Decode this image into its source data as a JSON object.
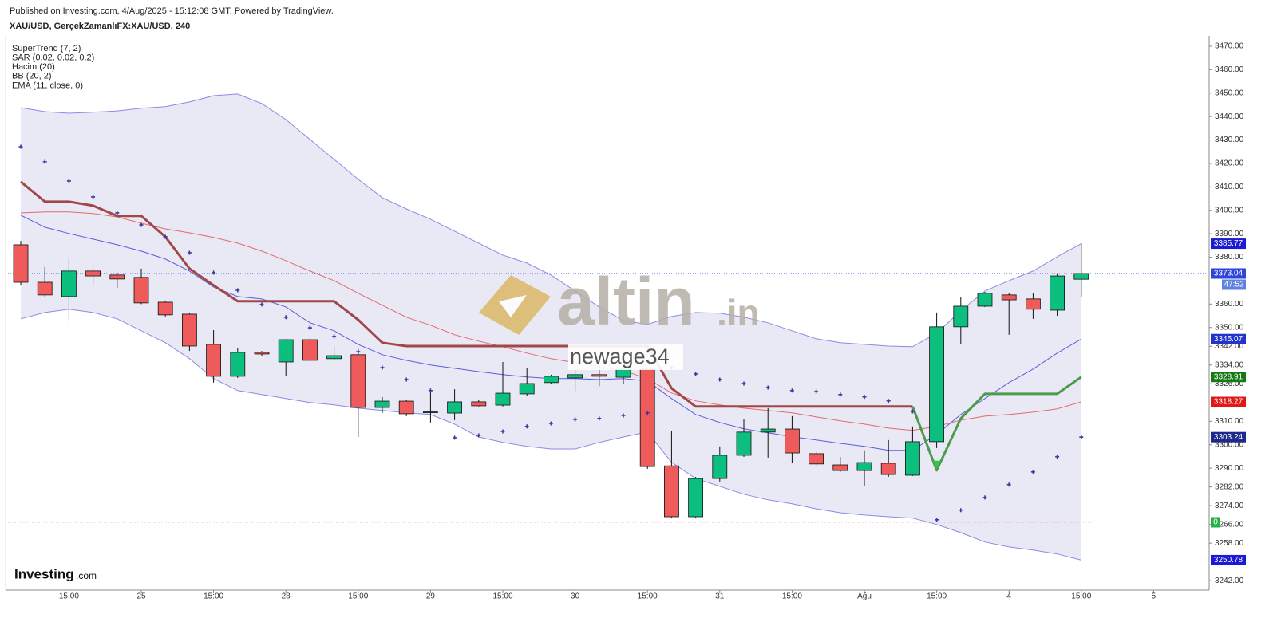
{
  "header": {
    "published": "Published on Investing.com, 4/Aug/2025 - 15:12:08 GMT, Powered by TradingView.",
    "symbol": "XAU/USD, GerçekZamanlıFX:XAU/USD, 240"
  },
  "watermark": {
    "brand": "altin",
    "suffix": ".in",
    "user": "newage34"
  },
  "logo": {
    "name": "Investing",
    "suffix": ".com"
  },
  "countdown": "47:52",
  "volume_last": 0,
  "chart_data": {
    "type": "candlestick",
    "categories": [
      null,
      null,
      "15:00",
      null,
      null,
      "25",
      null,
      null,
      "15:00",
      null,
      null,
      "28",
      null,
      null,
      "15:00",
      null,
      null,
      "29",
      null,
      null,
      "15:00",
      null,
      null,
      "30",
      null,
      null,
      "15:00",
      null,
      null,
      "31",
      null,
      null,
      "15:00",
      null,
      null,
      "Ağu",
      null,
      null,
      "15:00",
      null,
      null,
      "4",
      null,
      null,
      "15:00",
      null,
      null,
      "5"
    ],
    "open": [
      3385.3,
      3369.3,
      3363.2,
      3374.1,
      3372.4,
      3371.4,
      3360.8,
      3355.7,
      3342.8,
      3329.2,
      3339.4,
      3335.3,
      3344.8,
      3336.7,
      3338.4,
      3315.9,
      3318.6,
      3313.9,
      3313.5,
      3318.3,
      3316.9,
      3321.7,
      3326.5,
      3328.5,
      3329.9,
      3328.8,
      3332.2,
      3291.0,
      3269.3,
      3285.6,
      3295.5,
      3305.4,
      3306.7,
      3296.2,
      3291.4,
      3289.0,
      3292.1,
      3287.0,
      3301.3,
      3350.3,
      3359.1,
      3363.9,
      3362.2,
      3357.4,
      3370.6,
      null,
      null,
      null
    ],
    "high": [
      3387.0,
      3375.8,
      3379.2,
      3375.4,
      3373.4,
      3375.1,
      3361.5,
      3356.4,
      3348.9,
      3341.4,
      3340.0,
      3345.0,
      3345.5,
      3341.8,
      3340.8,
      3320.3,
      3319.3,
      3323.7,
      3323.7,
      3319.0,
      3335.3,
      3332.6,
      3329.9,
      3334.0,
      3334.6,
      3333.3,
      3333.0,
      3305.7,
      3286.3,
      3299.3,
      3310.8,
      3315.6,
      3312.2,
      3297.2,
      3294.8,
      3297.6,
      3302.0,
      3307.8,
      3356.4,
      3362.9,
      3365.2,
      3364.6,
      3364.6,
      3373.1,
      3386.0,
      null,
      null,
      null
    ],
    "low": [
      3368.0,
      3363.2,
      3353.0,
      3368.0,
      3366.9,
      3360.0,
      3354.7,
      3340.0,
      3326.5,
      3328.5,
      3338.0,
      3329.5,
      3335.6,
      3336.0,
      3303.3,
      3313.5,
      3312.2,
      3309.5,
      3310.5,
      3316.3,
      3316.3,
      3320.7,
      3325.8,
      3323.0,
      3325.0,
      3326.0,
      3289.7,
      3268.6,
      3268.6,
      3284.3,
      3294.8,
      3294.5,
      3292.1,
      3291.1,
      3288.4,
      3282.2,
      3286.3,
      3286.7,
      3298.6,
      3342.8,
      3358.8,
      3346.9,
      3353.7,
      3355.0,
      3363.2,
      null,
      null,
      null
    ],
    "close": [
      3369.3,
      3363.9,
      3374.1,
      3372.0,
      3370.7,
      3360.5,
      3355.4,
      3342.1,
      3329.2,
      3339.4,
      3338.7,
      3344.8,
      3336.0,
      3338.0,
      3315.9,
      3318.6,
      3313.2,
      3314.0,
      3318.3,
      3316.6,
      3322.0,
      3326.1,
      3329.2,
      3329.9,
      3329.2,
      3332.2,
      3290.7,
      3269.3,
      3285.6,
      3295.5,
      3305.4,
      3306.7,
      3296.5,
      3291.8,
      3289.0,
      3292.4,
      3287.3,
      3301.3,
      3350.3,
      3359.1,
      3364.6,
      3361.8,
      3357.8,
      3372.0,
      3373.04,
      null,
      null,
      null
    ],
    "up_color": "#0dbf7e",
    "down_color": "#ef5b5b",
    "indicators": [
      {
        "name": "SuperTrend (7, 2)",
        "lines": [
          {
            "color": "#a04848",
            "values": [
              3412.2,
              3403.7,
              3403.7,
              3402.0,
              3397.6,
              3397.6,
              3388.7,
              3375.1,
              3368.0,
              3361.2,
              3361.2,
              3361.2,
              3361.2,
              3361.2,
              3353.3,
              3343.5,
              3342.1,
              3342.1,
              3342.1,
              3342.1,
              3342.1,
              3342.1,
              3342.1,
              3342.1,
              3342.1,
              3342.1,
              3342.1,
              3324.1,
              3316.3,
              3316.3,
              3316.3,
              3316.3,
              3316.3,
              3316.3,
              3316.3,
              3316.3,
              3316.3,
              3316.3,
              null,
              null,
              null,
              null,
              null,
              null,
              null,
              null,
              null,
              null
            ]
          },
          {
            "color": "#4c9a4c",
            "values": [
              null,
              null,
              null,
              null,
              null,
              null,
              null,
              null,
              null,
              null,
              null,
              null,
              null,
              null,
              null,
              null,
              null,
              null,
              null,
              null,
              null,
              null,
              null,
              null,
              null,
              null,
              null,
              null,
              null,
              null,
              null,
              null,
              null,
              null,
              null,
              null,
              null,
              3316.3,
              3289.1,
              3311.2,
              3321.7,
              3321.7,
              3321.7,
              3321.7,
              3328.91,
              null,
              null,
              null
            ]
          }
        ]
      },
      {
        "name": "SAR (0.02, 0.02, 0.2)",
        "color": "#3a3aa0",
        "values": [
          3427.1,
          3420.7,
          3412.5,
          3405.7,
          3398.9,
          3393.8,
          3388.7,
          3381.9,
          3373.4,
          3365.9,
          3359.8,
          3354.4,
          3349.9,
          3346.2,
          3339.7,
          3332.9,
          3327.8,
          3323.1,
          3303.0,
          3304.0,
          3305.7,
          3307.8,
          3309.1,
          3310.8,
          3311.2,
          3312.5,
          3313.6,
          3332.9,
          3330.2,
          3327.8,
          3326.1,
          3324.4,
          3323.1,
          3322.7,
          3321.4,
          3320.4,
          3318.7,
          3314.2,
          3268.0,
          3272.1,
          3277.5,
          3283.0,
          3288.4,
          3294.9,
          3303.24,
          null,
          null,
          null
        ]
      },
      {
        "name": "Hacim (20)"
      },
      {
        "name": "BB (20, 2)",
        "color": "#8a8ae6",
        "middle_color": "#5b5be0",
        "fill": "#e9e9f5",
        "upper": [
          3443.8,
          3442.1,
          3441.4,
          3441.8,
          3442.4,
          3443.5,
          3444.2,
          3446.2,
          3448.9,
          3449.6,
          3445.5,
          3438.7,
          3430.2,
          3421.7,
          3413.2,
          3405.4,
          3400.6,
          3396.2,
          3391.1,
          3386.0,
          3380.9,
          3377.5,
          3372.4,
          3365.6,
          3358.8,
          3353.0,
          3351.3,
          3354.7,
          3356.4,
          3356.1,
          3354.4,
          3352.0,
          3348.6,
          3345.2,
          3343.5,
          3342.8,
          3342.1,
          3341.8,
          3347.6,
          3357.1,
          3365.6,
          3370.0,
          3374.1,
          3380.2,
          3385.77,
          null,
          null,
          null
        ],
        "middle": [
          3397.9,
          3392.8,
          3390.1,
          3387.7,
          3385.3,
          3382.6,
          3379.2,
          3374.1,
          3367.3,
          3363.2,
          3362.2,
          3358.8,
          3352.0,
          3348.6,
          3342.8,
          3338.4,
          3336.0,
          3334.0,
          3332.6,
          3331.2,
          3329.9,
          3328.9,
          3328.2,
          3328.2,
          3327.8,
          3328.2,
          3327.2,
          3319.7,
          3312.9,
          3309.5,
          3306.8,
          3305.1,
          3303.4,
          3302.0,
          3300.6,
          3299.3,
          3297.6,
          3297.6,
          3304.4,
          3312.9,
          3319.7,
          3326.5,
          3332.3,
          3339.1,
          3345.07,
          null,
          null,
          null
        ],
        "lower": [
          3353.7,
          3356.4,
          3357.8,
          3356.4,
          3353.7,
          3348.6,
          3343.5,
          3336.7,
          3328.2,
          3323.1,
          3321.4,
          3319.7,
          3318.0,
          3317.0,
          3315.6,
          3314.6,
          3313.6,
          3312.9,
          3308.8,
          3303.3,
          3301.0,
          3299.3,
          3298.2,
          3298.2,
          3301.0,
          3303.3,
          3305.4,
          3292.5,
          3285.6,
          3282.3,
          3278.9,
          3276.5,
          3274.8,
          3272.7,
          3271.0,
          3270.0,
          3269.3,
          3268.7,
          3266.0,
          3262.5,
          3258.5,
          3256.4,
          3255.1,
          3253.4,
          3250.78,
          null,
          null,
          null
        ]
      },
      {
        "name": "EMA (11, close, 0)",
        "color": "#e46a6a",
        "values": [
          3398.9,
          3399.3,
          3399.3,
          3398.6,
          3397.2,
          3394.5,
          3392.1,
          3390.4,
          3388.4,
          3386.0,
          3382.6,
          3378.5,
          3374.1,
          3370.0,
          3364.6,
          3359.5,
          3354.4,
          3351.0,
          3346.9,
          3344.2,
          3341.8,
          3339.1,
          3336.7,
          3335.0,
          3333.3,
          3331.6,
          3328.2,
          3322.1,
          3318.7,
          3317.0,
          3315.6,
          3314.6,
          3313.6,
          3311.9,
          3310.2,
          3308.8,
          3307.1,
          3306.1,
          3307.8,
          3310.5,
          3312.2,
          3312.9,
          3313.9,
          3315.3,
          3318.27,
          null,
          null,
          null
        ]
      }
    ],
    "ylim": [
      3238.0,
      3474.4
    ],
    "yticks": [
      {
        "value": 3470,
        "label": "3470.00"
      },
      {
        "value": 3460,
        "label": "3460.00"
      },
      {
        "value": 3450,
        "label": "3450.00"
      },
      {
        "value": 3440,
        "label": "3440.00"
      },
      {
        "value": 3430,
        "label": "3430.00"
      },
      {
        "value": 3420,
        "label": "3420.00"
      },
      {
        "value": 3410,
        "label": "3410.00"
      },
      {
        "value": 3400,
        "label": "3400.00"
      },
      {
        "value": 3390,
        "label": "3390.00"
      },
      {
        "value": 3380,
        "label": "3380.00"
      },
      {
        "value": 3360,
        "label": "3360.00"
      },
      {
        "value": 3350,
        "label": "3350.00"
      },
      {
        "value": 3342,
        "label": "3342.00"
      },
      {
        "value": 3334,
        "label": "3334.00"
      },
      {
        "value": 3326,
        "label": "3326.00"
      },
      {
        "value": 3310,
        "label": "3310.00"
      },
      {
        "value": 3300,
        "label": "3300.00"
      },
      {
        "value": 3290,
        "label": "3290.00"
      },
      {
        "value": 3282,
        "label": "3282.00"
      },
      {
        "value": 3274,
        "label": "3274.00"
      },
      {
        "value": 3266,
        "label": "3266.00"
      },
      {
        "value": 3258,
        "label": "3258.00"
      },
      {
        "value": 3242,
        "label": "3242.00"
      }
    ]
  }
}
